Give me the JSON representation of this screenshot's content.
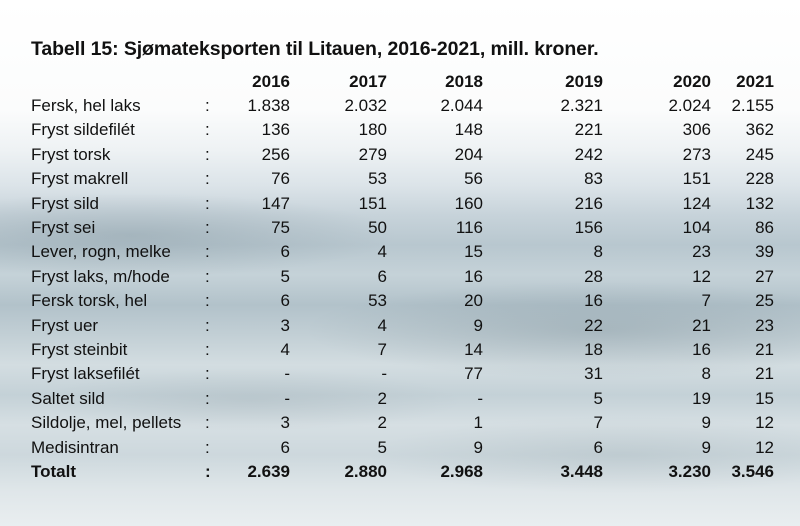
{
  "title": "Tabell 15: Sjømateksporten til Litauen, 2016-2021, mill. kroner.",
  "headers": [
    "2016",
    "2017",
    "2018",
    "2019",
    "2020",
    "2021"
  ],
  "separator": ":",
  "rows": [
    {
      "label": "Fersk, hel laks",
      "values": [
        "1.838",
        "2.032",
        "2.044",
        "2.321",
        "2.024",
        "2.155"
      ]
    },
    {
      "label": "Fryst sildefilét",
      "values": [
        "136",
        "180",
        "148",
        "221",
        "306",
        "362"
      ]
    },
    {
      "label": "Fryst torsk",
      "values": [
        "256",
        "279",
        "204",
        "242",
        "273",
        "245"
      ]
    },
    {
      "label": "Fryst makrell",
      "values": [
        "76",
        "53",
        "56",
        "83",
        "151",
        "228"
      ]
    },
    {
      "label": "Fryst sild",
      "values": [
        "147",
        "151",
        "160",
        "216",
        "124",
        "132"
      ]
    },
    {
      "label": "Fryst sei",
      "values": [
        "75",
        "50",
        "116",
        "156",
        "104",
        "86"
      ]
    },
    {
      "label": "Lever, rogn, melke",
      "values": [
        "6",
        "4",
        "15",
        "8",
        "23",
        "39"
      ]
    },
    {
      "label": "Fryst laks, m/hode",
      "values": [
        "5",
        "6",
        "16",
        "28",
        "12",
        "27"
      ]
    },
    {
      "label": "Fersk torsk, hel",
      "values": [
        "6",
        "53",
        "20",
        "16",
        "7",
        "25"
      ]
    },
    {
      "label": "Fryst uer",
      "values": [
        "3",
        "4",
        "9",
        "22",
        "21",
        "23"
      ]
    },
    {
      "label": "Fryst steinbit",
      "values": [
        "4",
        "7",
        "14",
        "18",
        "16",
        "21"
      ]
    },
    {
      "label": "Fryst laksefilét",
      "values": [
        "-",
        "-",
        "77",
        "31",
        "8",
        "21"
      ]
    },
    {
      "label": "Saltet sild",
      "values": [
        "-",
        "2",
        "-",
        "5",
        "19",
        "15"
      ]
    },
    {
      "label": "Sildolje, mel, pellets",
      "values": [
        "3",
        "2",
        "1",
        "7",
        "9",
        "12"
      ]
    },
    {
      "label": "Medisintran",
      "values": [
        "6",
        "5",
        "9",
        "6",
        "9",
        "12"
      ]
    }
  ],
  "total": {
    "label": "Totalt",
    "values": [
      "2.639",
      "2.880",
      "2.968",
      "3.448",
      "3.230",
      "3.546"
    ]
  }
}
